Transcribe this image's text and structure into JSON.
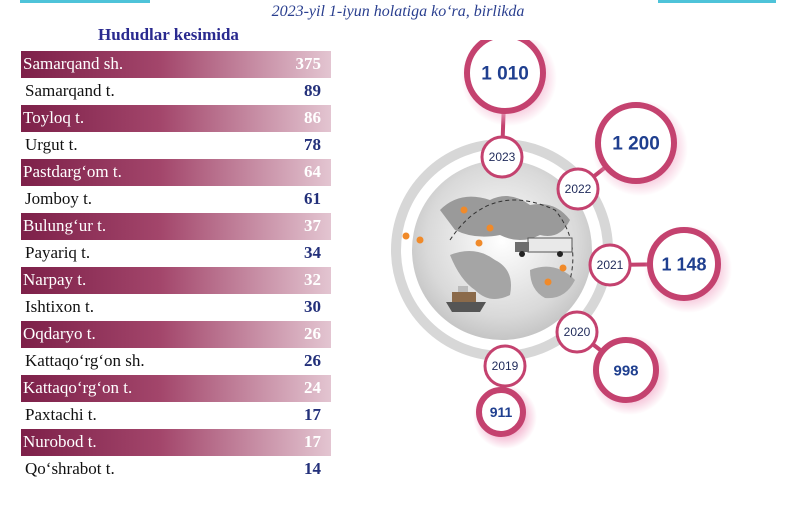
{
  "header": {
    "subtitle": "2023-yil 1-iyun holatiga ko‘ra, birlikda",
    "region_title": "Hududlar kesimida"
  },
  "chart_data": [
    {
      "type": "table",
      "title": "Hududlar kesimida",
      "rows": [
        {
          "name": "Samarqand sh.",
          "value": "375"
        },
        {
          "name": "Samarqand t.",
          "value": "89"
        },
        {
          "name": "Toyloq t.",
          "value": "86"
        },
        {
          "name": "Urgut t.",
          "value": "78"
        },
        {
          "name": "Pastdarg‘om t.",
          "value": "64"
        },
        {
          "name": "Jomboy t.",
          "value": "61"
        },
        {
          "name": "Bulung‘ur t.",
          "value": "37"
        },
        {
          "name": "Payariq t.",
          "value": "34"
        },
        {
          "name": "Narpay t.",
          "value": "32"
        },
        {
          "name": "Ishtixon t.",
          "value": "30"
        },
        {
          "name": "Oqdaryo t.",
          "value": "26"
        },
        {
          "name": "Kattaqo‘rg‘on sh.",
          "value": "26"
        },
        {
          "name": "Kattaqo‘rg‘on t.",
          "value": "24"
        },
        {
          "name": "Paxtachi t.",
          "value": "17"
        },
        {
          "name": "Nurobod t.",
          "value": "17"
        },
        {
          "name": "Qo‘shrabot t.",
          "value": "14"
        }
      ]
    },
    {
      "type": "radial",
      "series": [
        {
          "year": "2019",
          "value": "911"
        },
        {
          "year": "2020",
          "value": "998"
        },
        {
          "year": "2021",
          "value": "1 148"
        },
        {
          "year": "2022",
          "value": "1 200"
        },
        {
          "year": "2023",
          "value": "1 010"
        }
      ]
    }
  ],
  "colors": {
    "band": "#7d2049",
    "ring": "#c4426f",
    "value_text": "#1f3f8f",
    "accent_line": "#4ec3d9"
  },
  "icons": [
    "world-map-icon",
    "truck-icon",
    "ship-icon",
    "location-pin-icon"
  ]
}
